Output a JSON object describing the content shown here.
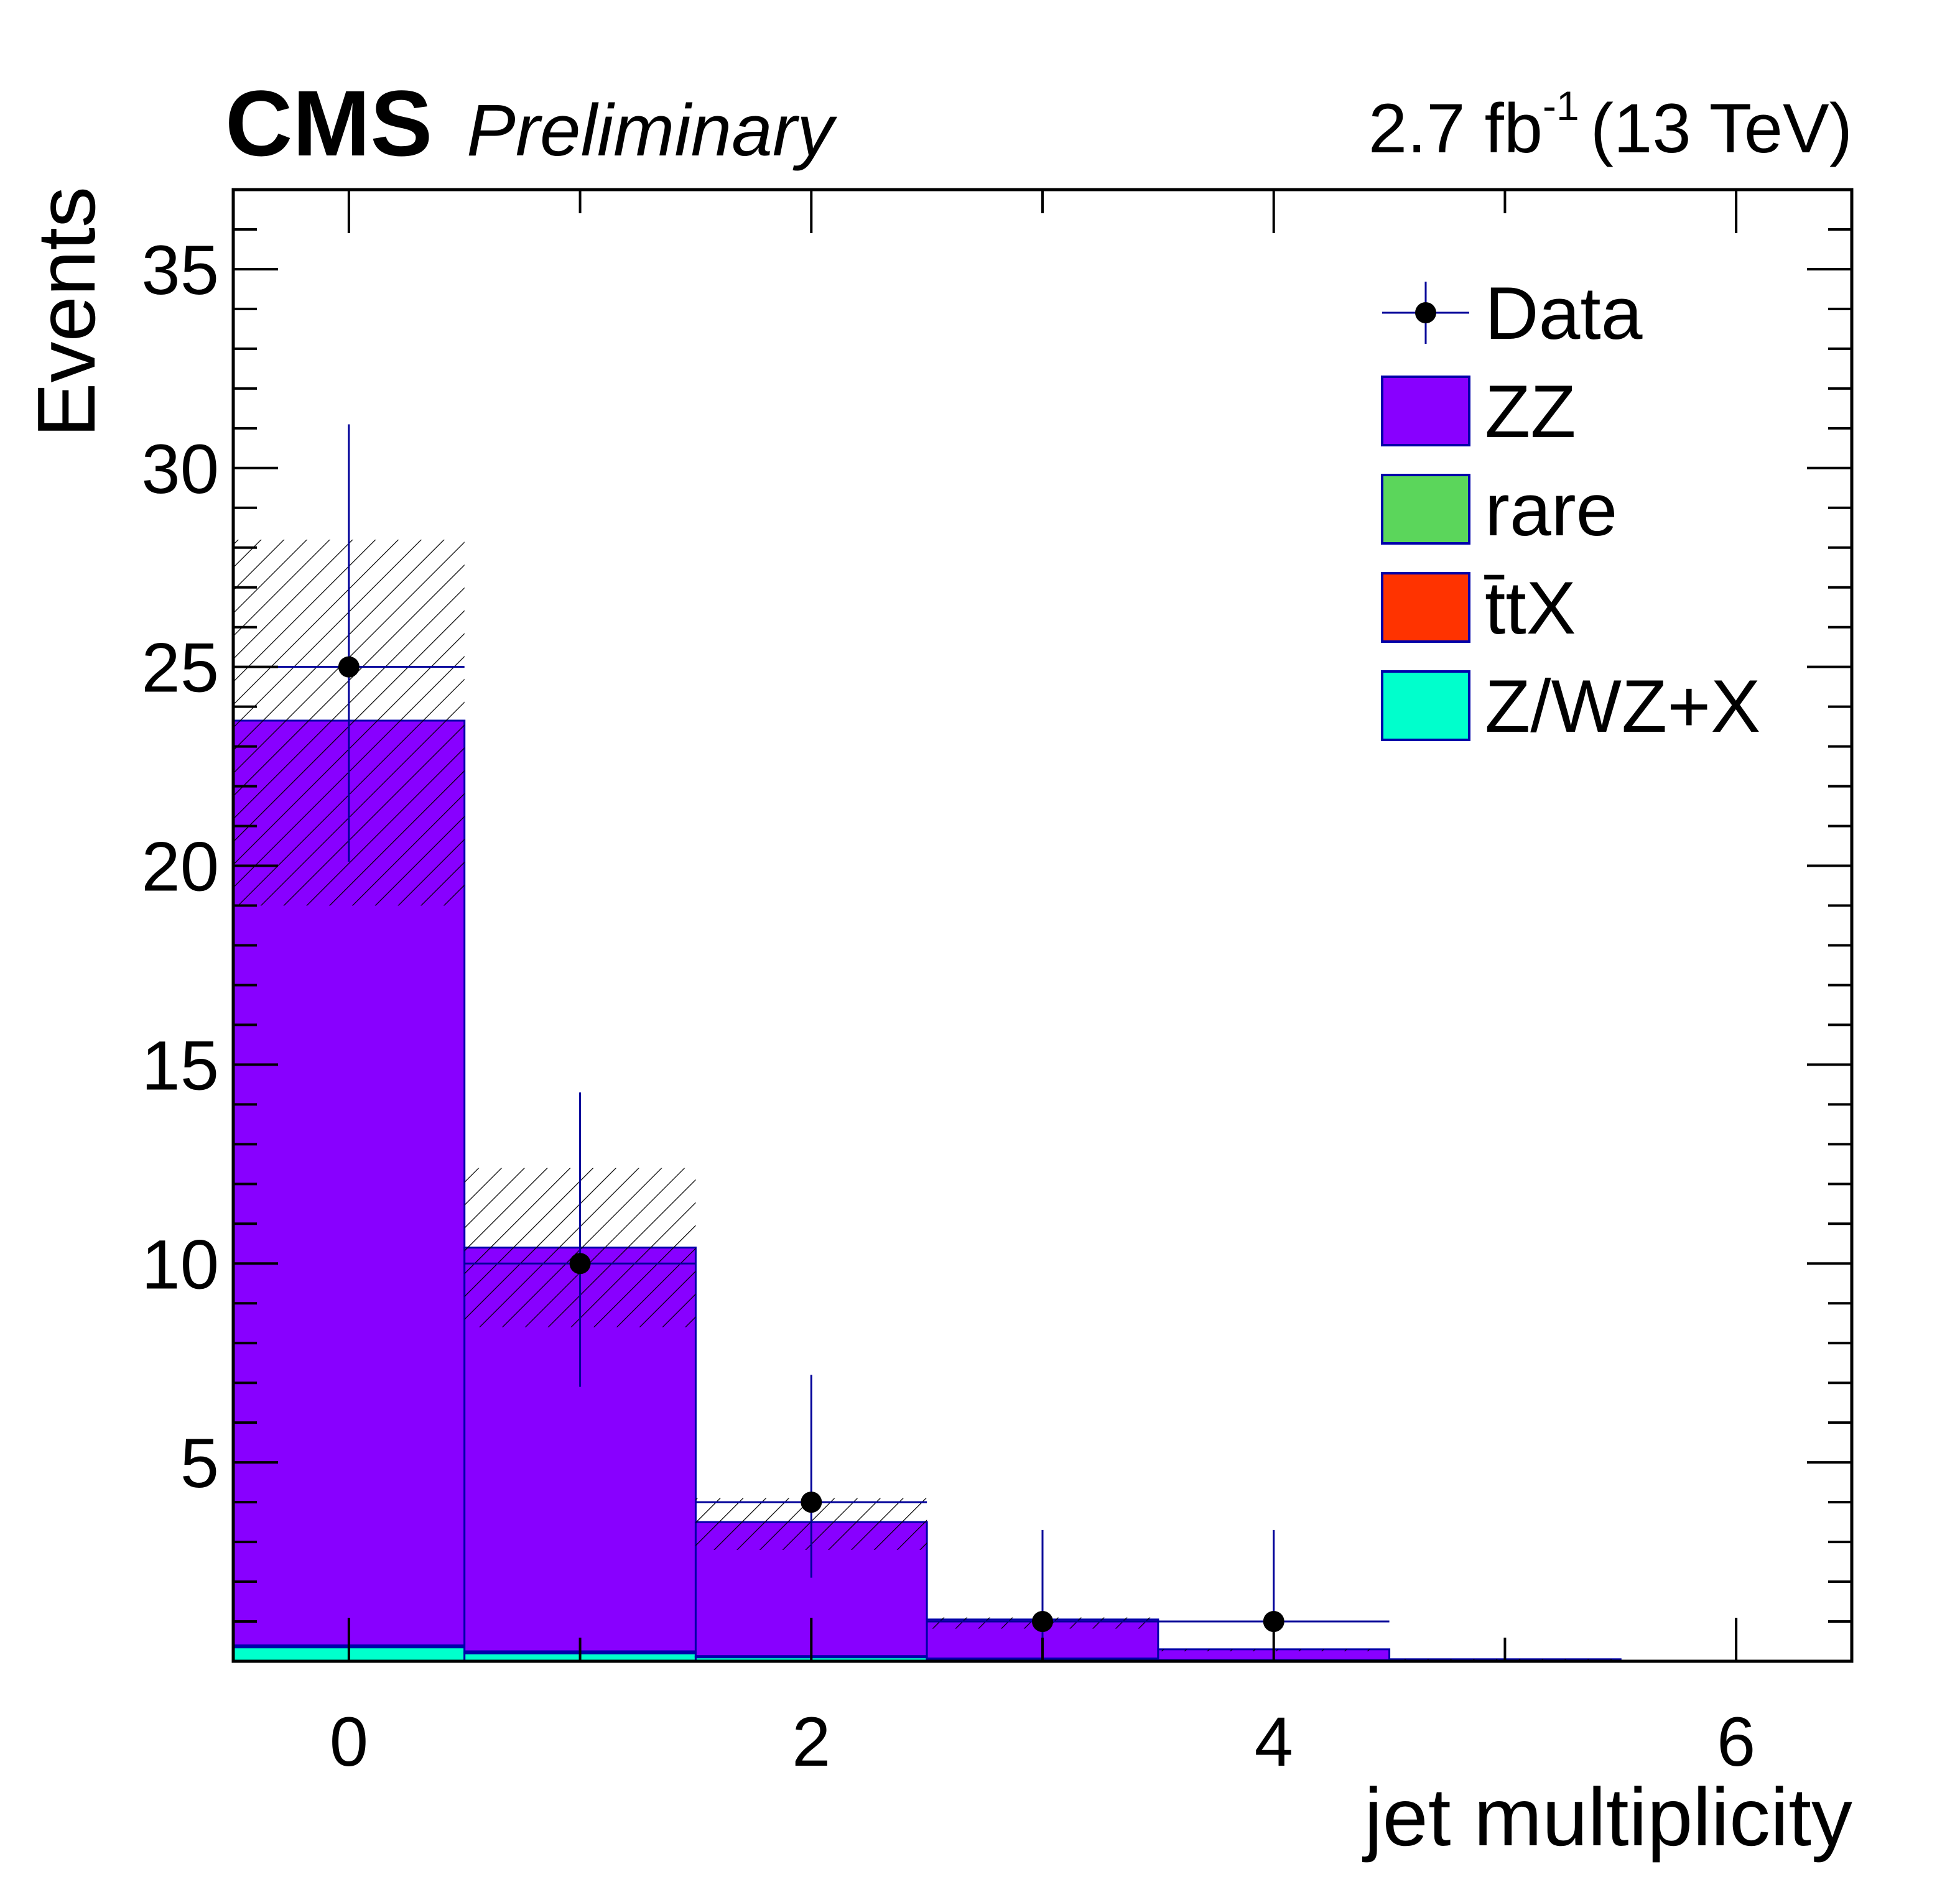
{
  "header": {
    "experiment": "CMS",
    "status": "Preliminary",
    "lumi_value": "2.7 fb",
    "lumi_exponent": "-1",
    "energy": "(13 TeV)"
  },
  "chart_data": {
    "type": "bar",
    "stacked": true,
    "xlabel": "jet multiplicity",
    "ylabel": "Events",
    "xlim": [
      -0.5,
      6.5
    ],
    "ylim": [
      0,
      37
    ],
    "x_ticks": [
      0,
      2,
      4,
      6
    ],
    "x_tick_labels": [
      "0",
      "2",
      "4",
      "6"
    ],
    "y_ticks": [
      5,
      10,
      15,
      20,
      25,
      30,
      35
    ],
    "y_tick_labels": [
      "5",
      "10",
      "15",
      "20",
      "25",
      "30",
      "35"
    ],
    "bins": [
      0,
      1,
      2,
      3,
      4,
      5,
      6
    ],
    "series": [
      {
        "name": "Z/WZ+X",
        "color": "#00ffcc",
        "values": [
          0.35,
          0.2,
          0.1,
          0.05,
          0.03,
          0.0,
          0.0
        ]
      },
      {
        "name": "t̄tX",
        "color": "#ff3300",
        "values": [
          0.02,
          0.02,
          0.01,
          0.01,
          0.0,
          0.0,
          0.0
        ]
      },
      {
        "name": "rare",
        "color": "#5bd65b",
        "values": [
          0.03,
          0.03,
          0.02,
          0.01,
          0.0,
          0.0,
          0.0
        ]
      },
      {
        "name": "ZZ",
        "color": "#8800ff",
        "values": [
          23.25,
          10.15,
          3.37,
          0.98,
          0.27,
          0.05,
          0.0
        ]
      }
    ],
    "uncertainty_band": {
      "low": [
        19.0,
        8.4,
        2.8,
        0.82,
        0.25,
        0.04,
        0.0
      ],
      "high": [
        28.2,
        12.4,
        4.1,
        1.1,
        0.3,
        0.06,
        0.0
      ]
    },
    "data": {
      "name": "Data",
      "x": [
        0,
        1,
        2,
        3,
        4
      ],
      "y": [
        25,
        10,
        4,
        1,
        1
      ],
      "err_low": [
        4.9,
        3.1,
        1.9,
        0.8,
        0.8
      ],
      "err_high": [
        6.1,
        4.3,
        3.2,
        2.3,
        2.3
      ]
    },
    "legend": {
      "position": "top-right",
      "entries": [
        "Data",
        "ZZ",
        "rare",
        "t̄tX",
        "Z/WZ+X"
      ]
    },
    "colors": {
      "stroke": "#0000aa",
      "data_line": "#000099"
    }
  }
}
